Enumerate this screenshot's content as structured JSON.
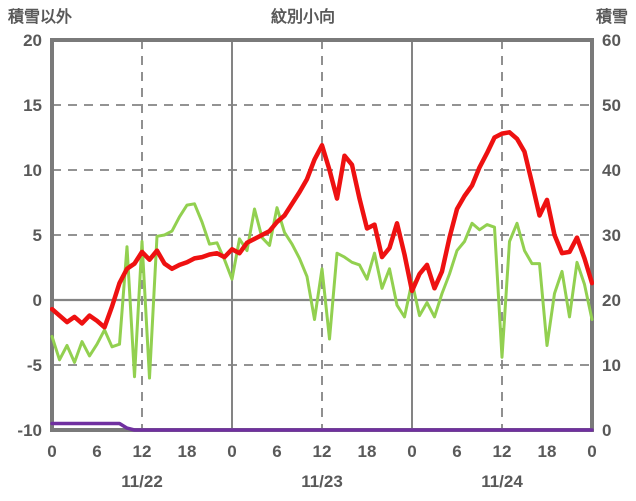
{
  "header": {
    "left_axis_label": "積雪以外",
    "title": "紋別小向",
    "right_axis_label": "積雪"
  },
  "colors": {
    "red_line": "#ee1111",
    "green_line": "#92d050",
    "purple_line": "#7030a0",
    "grid": "#848484",
    "frame": "#7a7a7a",
    "text": "#595959",
    "background": "#ffffff"
  },
  "chart_data": {
    "type": "line",
    "title": "紋別小向",
    "left_axis": {
      "label": "積雪以外",
      "min": -10,
      "max": 20,
      "ticks": [
        20,
        15,
        10,
        5,
        0,
        -5,
        -10
      ]
    },
    "right_axis": {
      "label": "積雪",
      "min": 0,
      "max": 60,
      "ticks": [
        60,
        50,
        40,
        30,
        20,
        10,
        0
      ]
    },
    "x_axis": {
      "hours_range": [
        0,
        72
      ],
      "tick_hours": [
        0,
        6,
        12,
        18,
        24,
        30,
        36,
        42,
        48,
        54,
        60,
        66,
        72
      ],
      "tick_labels": [
        "0",
        "6",
        "12",
        "18",
        "0",
        "6",
        "12",
        "18",
        "0",
        "6",
        "12",
        "18",
        "0"
      ],
      "date_labels": [
        {
          "label": "11/22",
          "center_hour": 12
        },
        {
          "label": "11/23",
          "center_hour": 36
        },
        {
          "label": "11/24",
          "center_hour": 60
        }
      ]
    },
    "gridlines": {
      "horizontal_dashed_left_values": [
        15,
        10,
        5,
        -5
      ],
      "horizontal_solid_left_values": [
        0
      ],
      "vertical_dashed_hours": [
        12,
        36,
        60
      ],
      "vertical_solid_hours": [
        24,
        48
      ]
    },
    "series": [
      {
        "name": "green-series",
        "axis": "left",
        "color": "#92d050",
        "width": 3,
        "values": [
          -2.8,
          -4.6,
          -3.5,
          -4.8,
          -3.2,
          -4.3,
          -3.4,
          -2.3,
          -3.6,
          -3.4,
          4.1,
          -5.9,
          4.5,
          -6.0,
          4.9,
          5.0,
          5.3,
          6.4,
          7.3,
          7.4,
          6.0,
          4.3,
          4.4,
          3.1,
          1.6,
          4.7,
          3.8,
          7.0,
          4.8,
          4.2,
          7.1,
          5.2,
          4.3,
          3.2,
          1.8,
          -1.5,
          2.4,
          -3.0,
          3.6,
          3.3,
          2.9,
          2.7,
          1.6,
          3.6,
          0.9,
          2.4,
          -0.4,
          -1.3,
          1.4,
          -1.2,
          -0.2,
          -1.3,
          0.5,
          2.0,
          3.8,
          4.5,
          5.9,
          5.4,
          5.8,
          5.6,
          -4.4,
          4.5,
          5.9,
          3.8,
          2.8,
          2.8,
          -3.5,
          0.5,
          2.2,
          -1.3,
          2.9,
          1.2,
          -1.5
        ]
      },
      {
        "name": "red-series",
        "axis": "left",
        "color": "#ee1111",
        "width": 4.5,
        "values": [
          -0.7,
          -1.2,
          -1.7,
          -1.3,
          -1.8,
          -1.2,
          -1.6,
          -2.1,
          -0.5,
          1.3,
          2.4,
          2.8,
          3.7,
          3.1,
          3.8,
          2.8,
          2.4,
          2.7,
          2.9,
          3.2,
          3.3,
          3.5,
          3.6,
          3.3,
          3.9,
          3.6,
          4.4,
          4.7,
          5.0,
          5.3,
          6.0,
          6.5,
          7.4,
          8.3,
          9.3,
          10.8,
          11.9,
          10.0,
          7.8,
          11.1,
          10.4,
          7.8,
          5.5,
          5.8,
          3.3,
          4.0,
          5.9,
          3.5,
          0.7,
          2.0,
          2.7,
          0.9,
          2.2,
          4.8,
          7.0,
          8.0,
          8.8,
          10.2,
          11.3,
          12.5,
          12.8,
          12.9,
          12.4,
          11.4,
          9.0,
          6.5,
          7.7,
          5.0,
          3.6,
          3.7,
          4.8,
          3.2,
          1.3
        ]
      },
      {
        "name": "snow-depth-series",
        "axis": "right",
        "color": "#7030a0",
        "width": 3.5,
        "values": [
          1,
          1,
          1,
          1,
          1,
          1,
          1,
          1,
          1,
          1,
          0.3,
          0,
          0,
          0,
          0,
          0,
          0,
          0,
          0,
          0,
          0,
          0,
          0,
          0,
          0,
          0,
          0,
          0,
          0,
          0,
          0,
          0,
          0,
          0,
          0,
          0,
          0,
          0,
          0,
          0,
          0,
          0,
          0,
          0,
          0,
          0,
          0,
          0,
          0,
          0,
          0,
          0,
          0,
          0,
          0,
          0,
          0,
          0,
          0,
          0,
          0,
          0,
          0,
          0,
          0,
          0,
          0,
          0,
          0,
          0,
          0,
          0,
          0
        ]
      }
    ]
  }
}
